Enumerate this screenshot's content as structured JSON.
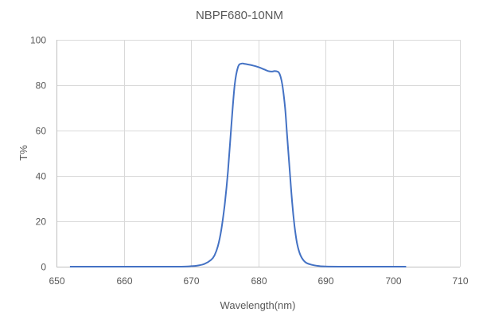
{
  "chart_data": {
    "type": "line",
    "title": "NBPF680-10NM",
    "xlabel": "Wavelength(nm)",
    "ylabel": "T%",
    "xlim": [
      650,
      710
    ],
    "ylim": [
      0,
      100
    ],
    "x_ticks": [
      650,
      660,
      670,
      680,
      690,
      700,
      710
    ],
    "y_ticks": [
      0,
      20,
      40,
      60,
      80,
      100
    ],
    "grid": true,
    "legend": null,
    "series": [
      {
        "name": "T%",
        "color": "#4472C4",
        "x": [
          652,
          660,
          668,
          670,
          671,
          672,
          673,
          673.5,
          674,
          674.5,
          675,
          675.5,
          676,
          676.5,
          677,
          677.5,
          678,
          679,
          680,
          681,
          681.5,
          682,
          682.5,
          683,
          683.3,
          683.6,
          684,
          684.3,
          684.7,
          685,
          685.4,
          685.8,
          686.3,
          687,
          688,
          689,
          690,
          695,
          702
        ],
        "y": [
          0,
          0,
          0,
          0.2,
          0.5,
          1.2,
          3,
          5,
          9,
          16,
          27,
          42,
          62,
          80,
          88,
          89.5,
          89.4,
          88.8,
          88,
          86.8,
          86.2,
          86,
          86.2,
          85.8,
          84,
          80,
          70,
          58,
          42,
          30,
          18,
          10,
          5,
          2,
          0.8,
          0.3,
          0.1,
          0,
          0
        ]
      }
    ]
  }
}
